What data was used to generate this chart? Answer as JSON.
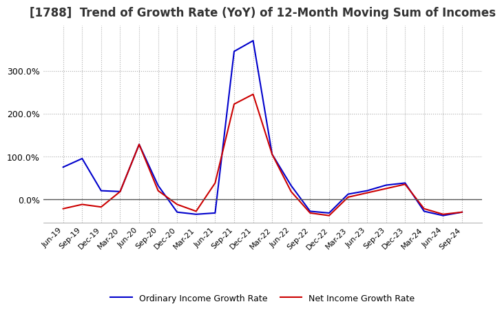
{
  "title": "[1788]  Trend of Growth Rate (YoY) of 12-Month Moving Sum of Incomes",
  "title_fontsize": 12,
  "x_labels": [
    "Jun-19",
    "Sep-19",
    "Dec-19",
    "Mar-20",
    "Jun-20",
    "Sep-20",
    "Dec-20",
    "Mar-21",
    "Jun-21",
    "Sep-21",
    "Dec-21",
    "Mar-22",
    "Jun-22",
    "Sep-22",
    "Dec-22",
    "Mar-23",
    "Jun-23",
    "Sep-23",
    "Dec-23",
    "Mar-24",
    "Jun-24",
    "Sep-24"
  ],
  "ordinary_income": [
    0.75,
    0.95,
    0.2,
    0.18,
    1.28,
    0.32,
    -0.3,
    -0.35,
    -0.32,
    3.45,
    3.7,
    1.05,
    0.32,
    -0.28,
    -0.32,
    0.12,
    0.2,
    0.33,
    0.38,
    -0.28,
    -0.38,
    -0.3
  ],
  "net_income": [
    -0.22,
    -0.12,
    -0.18,
    0.18,
    1.28,
    0.2,
    -0.12,
    -0.28,
    0.38,
    2.22,
    2.45,
    1.05,
    0.18,
    -0.32,
    -0.38,
    0.05,
    0.15,
    0.25,
    0.35,
    -0.22,
    -0.35,
    -0.3
  ],
  "ordinary_color": "#0000cc",
  "net_color": "#cc0000",
  "ylim_min": -0.55,
  "ylim_max": 4.05,
  "yticks": [
    0.0,
    1.0,
    2.0,
    3.0
  ],
  "ytick_labels": [
    "0.0%",
    "100.0%",
    "200.0%",
    "300.0%"
  ],
  "grid_color": "#aaaaaa",
  "background_color": "#ffffff",
  "legend_labels": [
    "Ordinary Income Growth Rate",
    "Net Income Growth Rate"
  ]
}
